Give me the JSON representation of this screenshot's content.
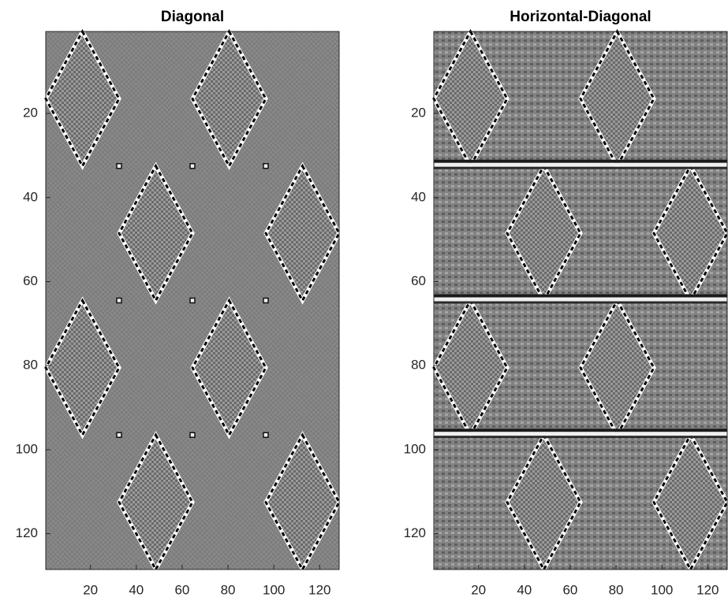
{
  "chart_data": [
    {
      "type": "image",
      "title": "Diagonal",
      "xlim": [
        0.5,
        128.5
      ],
      "ylim": [
        0.5,
        128.5
      ],
      "y_reversed": true,
      "xticks": [
        20,
        40,
        60,
        80,
        100,
        120
      ],
      "yticks": [
        20,
        40,
        60,
        80,
        100,
        120
      ],
      "bands": false
    },
    {
      "type": "image",
      "title": "Horizontal-Diagonal",
      "xlim": [
        0.5,
        128.5
      ],
      "ylim": [
        0.5,
        128.5
      ],
      "y_reversed": true,
      "xticks": [
        20,
        40,
        60,
        80,
        100,
        120
      ],
      "yticks": [
        20,
        40,
        60,
        80,
        100,
        120
      ],
      "bands": true
    }
  ]
}
